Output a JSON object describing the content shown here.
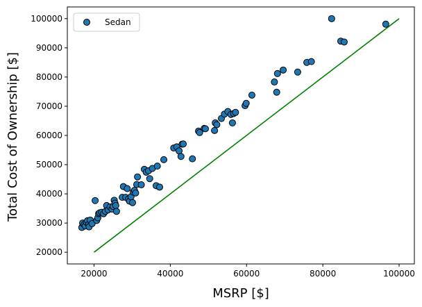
{
  "chart_data": {
    "type": "scatter",
    "xlabel": "MSRP [$]",
    "ylabel": "Total Cost of Ownership [$]",
    "xlim": [
      13000,
      104000
    ],
    "ylim": [
      16000,
      104000
    ],
    "xticks": [
      20000,
      40000,
      60000,
      80000,
      100000
    ],
    "yticks": [
      20000,
      30000,
      40000,
      50000,
      60000,
      70000,
      80000,
      90000,
      100000
    ],
    "xtick_labels": [
      "20000",
      "40000",
      "60000",
      "80000",
      "100000"
    ],
    "ytick_labels": [
      "20000",
      "30000",
      "40000",
      "50000",
      "60000",
      "70000",
      "80000",
      "90000",
      "100000"
    ],
    "legend": {
      "placement": "upper-left",
      "entries": [
        "Sedan"
      ]
    },
    "grid": false,
    "series": [
      {
        "name": "Sedan",
        "kind": "scatter",
        "color": "#1f77b4",
        "edgecolor": "#000000",
        "points": [
          [
            16800,
            28500
          ],
          [
            17000,
            30000
          ],
          [
            17400,
            29500
          ],
          [
            17700,
            29000
          ],
          [
            18000,
            30300
          ],
          [
            18300,
            30800
          ],
          [
            18600,
            29500
          ],
          [
            18700,
            28700
          ],
          [
            19000,
            31000
          ],
          [
            19500,
            29800
          ],
          [
            20300,
            37700
          ],
          [
            20700,
            30900
          ],
          [
            21000,
            31800
          ],
          [
            21200,
            33200
          ],
          [
            21500,
            33500
          ],
          [
            22000,
            33700
          ],
          [
            22500,
            33200
          ],
          [
            23000,
            34000
          ],
          [
            23300,
            36000
          ],
          [
            23700,
            34500
          ],
          [
            24200,
            35500
          ],
          [
            24700,
            34800
          ],
          [
            25000,
            35700
          ],
          [
            25300,
            37800
          ],
          [
            25500,
            36800
          ],
          [
            25700,
            36000
          ],
          [
            25900,
            34000
          ],
          [
            27400,
            38800
          ],
          [
            27700,
            42500
          ],
          [
            28300,
            38800
          ],
          [
            28700,
            41800
          ],
          [
            29000,
            38200
          ],
          [
            29300,
            37500
          ],
          [
            29700,
            39000
          ],
          [
            30100,
            37000
          ],
          [
            30300,
            40600
          ],
          [
            30600,
            41200
          ],
          [
            30900,
            40300
          ],
          [
            31200,
            43200
          ],
          [
            31400,
            45800
          ],
          [
            32400,
            43100
          ],
          [
            33200,
            48400
          ],
          [
            33700,
            47400
          ],
          [
            34300,
            47900
          ],
          [
            34600,
            45200
          ],
          [
            35300,
            48700
          ],
          [
            36300,
            42800
          ],
          [
            36600,
            49500
          ],
          [
            37200,
            42300
          ],
          [
            38300,
            51700
          ],
          [
            40900,
            55700
          ],
          [
            41700,
            56100
          ],
          [
            42300,
            54700
          ],
          [
            42800,
            52800
          ],
          [
            43100,
            57000
          ],
          [
            43400,
            57100
          ],
          [
            45800,
            52000
          ],
          [
            47400,
            61500
          ],
          [
            47700,
            61000
          ],
          [
            48900,
            62400
          ],
          [
            49200,
            62300
          ],
          [
            51600,
            61700
          ],
          [
            51800,
            64300
          ],
          [
            52200,
            63700
          ],
          [
            53400,
            65800
          ],
          [
            54200,
            67300
          ],
          [
            55100,
            68200
          ],
          [
            55900,
            67200
          ],
          [
            56300,
            64300
          ],
          [
            56600,
            67500
          ],
          [
            57100,
            67900
          ],
          [
            59600,
            70200
          ],
          [
            59900,
            71000
          ],
          [
            61400,
            73800
          ],
          [
            67300,
            78300
          ],
          [
            67900,
            74800
          ],
          [
            68100,
            81200
          ],
          [
            69600,
            82400
          ],
          [
            73400,
            81700
          ],
          [
            75800,
            85000
          ],
          [
            77000,
            85300
          ],
          [
            82300,
            100000
          ],
          [
            84700,
            92300
          ],
          [
            85600,
            92000
          ],
          [
            96500,
            98100
          ]
        ]
      },
      {
        "name": "",
        "kind": "line",
        "color": "#008000",
        "x": [
          20000,
          100000
        ],
        "y": [
          20000,
          100000
        ]
      }
    ]
  }
}
